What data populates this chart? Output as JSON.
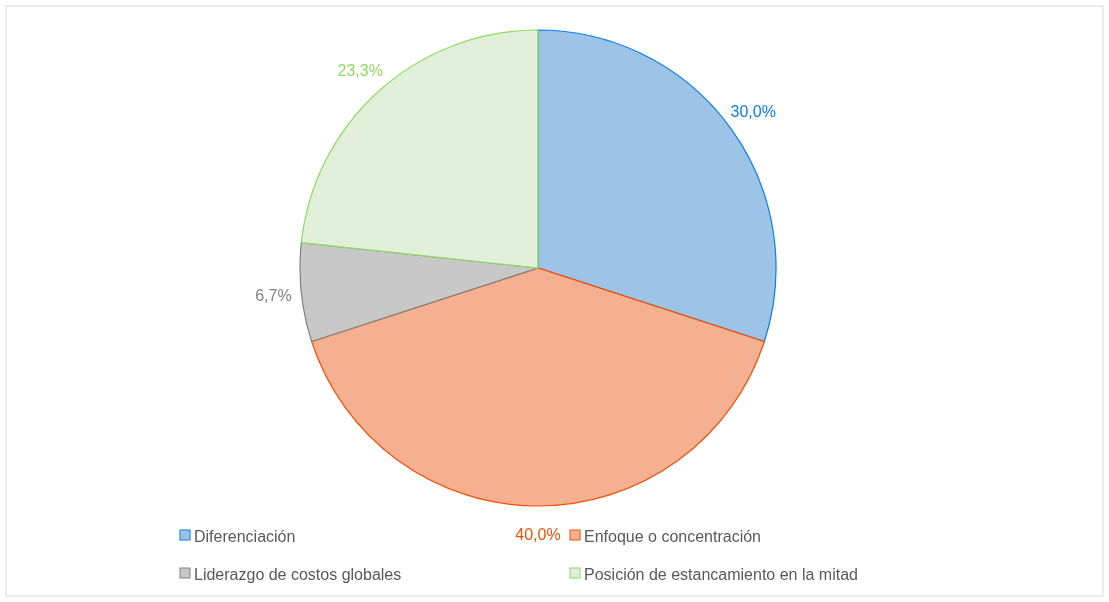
{
  "chart_data": {
    "type": "pie",
    "categories": [
      "Diferenciación",
      "Enfoque o concentración",
      "Liderazgo de costos globales",
      "Posición de estancamiento en la mitad"
    ],
    "values": [
      30.0,
      40.0,
      6.7,
      23.3
    ],
    "colors": [
      "#9dc3e6",
      "#f4b090",
      "#c8c8c8",
      "#e2efda"
    ],
    "value_labels": [
      "30,0%",
      "40,0%",
      "6,7%",
      "23,3%"
    ],
    "legend": "bottom"
  }
}
